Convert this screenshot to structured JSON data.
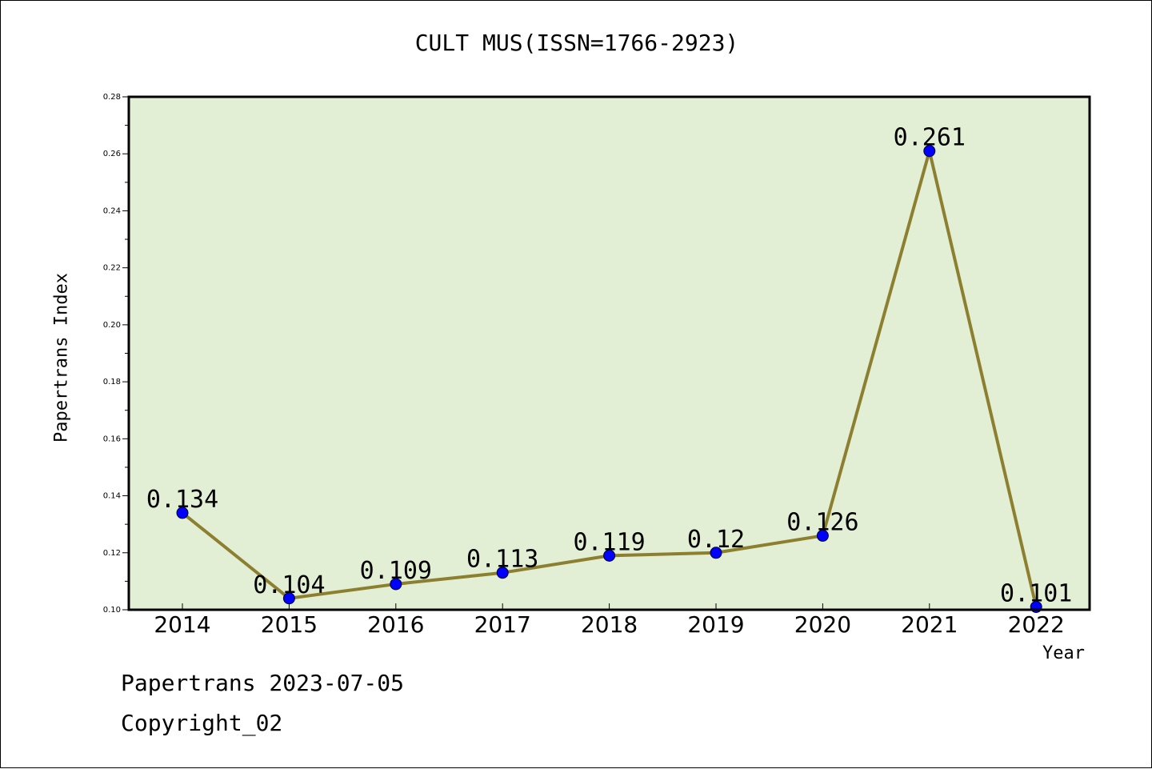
{
  "footer": {
    "date_line": "Papertrans 2023-07-05",
    "copyright": "Copyright_02"
  },
  "colors": {
    "plot_background": "#e2efd4",
    "line": "#8c8030",
    "marker": "#0000ff"
  },
  "chart_data": {
    "type": "line",
    "title": "CULT MUS(ISSN=1766-2923)",
    "xlabel": "Year",
    "ylabel": "Papertrans Index",
    "categories": [
      "2014",
      "2015",
      "2016",
      "2017",
      "2018",
      "2019",
      "2020",
      "2021",
      "2022"
    ],
    "series": [
      {
        "values": [
          0.134,
          0.104,
          0.109,
          0.113,
          0.119,
          0.12,
          0.126,
          0.261,
          0.101
        ],
        "labels": [
          "0.134",
          "0.104",
          "0.109",
          "0.113",
          "0.119",
          "0.12",
          "0.126",
          "0.261",
          "0.101"
        ]
      }
    ],
    "ylim": [
      0.1,
      0.28
    ],
    "yticks": [
      "0.10",
      "0.12",
      "0.14",
      "0.16",
      "0.18",
      "0.20",
      "0.22",
      "0.24",
      "0.26",
      "0.28"
    ],
    "grid": false,
    "legend": "none"
  }
}
